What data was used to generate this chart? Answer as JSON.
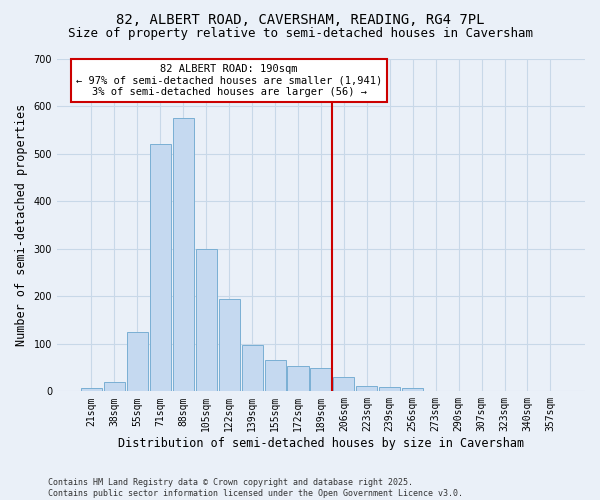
{
  "title": "82, ALBERT ROAD, CAVERSHAM, READING, RG4 7PL",
  "subtitle": "Size of property relative to semi-detached houses in Caversham",
  "xlabel": "Distribution of semi-detached houses by size in Caversham",
  "ylabel": "Number of semi-detached properties",
  "categories": [
    "21sqm",
    "38sqm",
    "55sqm",
    "71sqm",
    "88sqm",
    "105sqm",
    "122sqm",
    "139sqm",
    "155sqm",
    "172sqm",
    "189sqm",
    "206sqm",
    "223sqm",
    "239sqm",
    "256sqm",
    "273sqm",
    "290sqm",
    "307sqm",
    "323sqm",
    "340sqm",
    "357sqm"
  ],
  "values": [
    8,
    20,
    125,
    520,
    575,
    300,
    195,
    97,
    65,
    53,
    50,
    30,
    12,
    10,
    7,
    0,
    0,
    0,
    0,
    0,
    0
  ],
  "bar_color": "#c5d9f0",
  "bar_edge_color": "#7aafd4",
  "grid_color": "#c8d8e8",
  "background_color": "#eaf0f8",
  "vline_color": "#cc0000",
  "annotation_text": "82 ALBERT ROAD: 190sqm\n← 97% of semi-detached houses are smaller (1,941)\n3% of semi-detached houses are larger (56) →",
  "annotation_box_color": "#ffffff",
  "annotation_edge_color": "#cc0000",
  "ylim": [
    0,
    700
  ],
  "yticks": [
    0,
    100,
    200,
    300,
    400,
    500,
    600,
    700
  ],
  "footer": "Contains HM Land Registry data © Crown copyright and database right 2025.\nContains public sector information licensed under the Open Government Licence v3.0.",
  "title_fontsize": 10,
  "subtitle_fontsize": 9,
  "axis_label_fontsize": 8.5,
  "tick_fontsize": 7,
  "annotation_fontsize": 7.5,
  "footer_fontsize": 6
}
